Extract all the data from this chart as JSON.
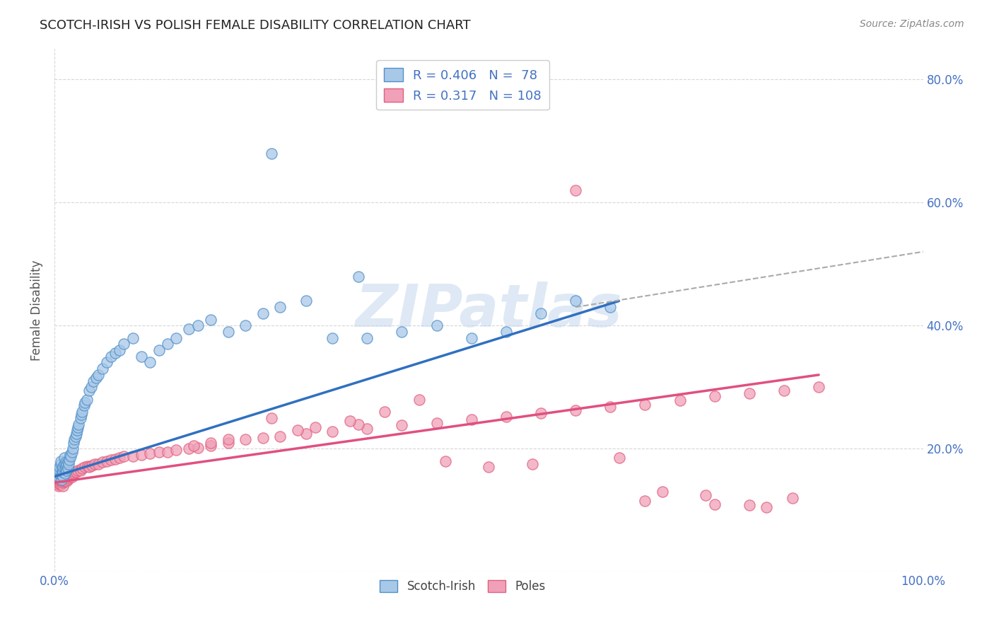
{
  "title": "SCOTCH-IRISH VS POLISH FEMALE DISABILITY CORRELATION CHART",
  "source": "Source: ZipAtlas.com",
  "ylabel": "Female Disability",
  "xlim": [
    0.0,
    1.0
  ],
  "ylim": [
    0.0,
    0.85
  ],
  "xticks": [
    0.0,
    1.0
  ],
  "xticklabels": [
    "0.0%",
    "100.0%"
  ],
  "right_yticks": [
    0.2,
    0.4,
    0.6,
    0.8
  ],
  "right_yticklabels": [
    "20.0%",
    "40.0%",
    "60.0%",
    "80.0%"
  ],
  "scotch_irish_R": 0.406,
  "scotch_irish_N": 78,
  "poles_R": 0.317,
  "poles_N": 108,
  "scotch_irish_color": "#A8C8E8",
  "poles_color": "#F0A0B8",
  "scotch_irish_edge_color": "#5090C8",
  "poles_edge_color": "#E06080",
  "scotch_irish_line_color": "#3070C0",
  "poles_line_color": "#E05080",
  "dashed_line_color": "#AAAAAA",
  "title_color": "#222222",
  "axis_label_color": "#4472C4",
  "tick_color": "#4472C4",
  "background_color": "#FFFFFF",
  "grid_color": "#CCCCCC",
  "watermark": "ZIPatlas",
  "scotch_irish_x": [
    0.005,
    0.005,
    0.006,
    0.006,
    0.007,
    0.007,
    0.008,
    0.008,
    0.009,
    0.009,
    0.01,
    0.01,
    0.01,
    0.011,
    0.011,
    0.012,
    0.012,
    0.013,
    0.013,
    0.014,
    0.014,
    0.015,
    0.015,
    0.016,
    0.017,
    0.018,
    0.019,
    0.02,
    0.021,
    0.022,
    0.023,
    0.024,
    0.025,
    0.026,
    0.027,
    0.028,
    0.03,
    0.031,
    0.032,
    0.034,
    0.035,
    0.037,
    0.04,
    0.042,
    0.045,
    0.048,
    0.05,
    0.055,
    0.06,
    0.065,
    0.07,
    0.075,
    0.08,
    0.09,
    0.1,
    0.11,
    0.12,
    0.13,
    0.14,
    0.155,
    0.165,
    0.18,
    0.2,
    0.22,
    0.24,
    0.26,
    0.29,
    0.32,
    0.36,
    0.4,
    0.44,
    0.48,
    0.52,
    0.56,
    0.6,
    0.64,
    0.35,
    0.25
  ],
  "scotch_irish_y": [
    0.155,
    0.16,
    0.165,
    0.17,
    0.175,
    0.18,
    0.15,
    0.158,
    0.162,
    0.168,
    0.155,
    0.162,
    0.17,
    0.175,
    0.185,
    0.16,
    0.168,
    0.172,
    0.178,
    0.165,
    0.175,
    0.168,
    0.178,
    0.175,
    0.182,
    0.19,
    0.188,
    0.195,
    0.2,
    0.21,
    0.215,
    0.22,
    0.225,
    0.23,
    0.235,
    0.24,
    0.25,
    0.255,
    0.26,
    0.27,
    0.275,
    0.28,
    0.295,
    0.3,
    0.31,
    0.315,
    0.32,
    0.33,
    0.34,
    0.35,
    0.355,
    0.36,
    0.37,
    0.38,
    0.35,
    0.34,
    0.36,
    0.37,
    0.38,
    0.395,
    0.4,
    0.41,
    0.39,
    0.4,
    0.42,
    0.43,
    0.44,
    0.38,
    0.38,
    0.39,
    0.4,
    0.38,
    0.39,
    0.42,
    0.44,
    0.43,
    0.48,
    0.68
  ],
  "poles_x": [
    0.002,
    0.003,
    0.003,
    0.004,
    0.004,
    0.004,
    0.005,
    0.005,
    0.005,
    0.006,
    0.006,
    0.006,
    0.007,
    0.007,
    0.007,
    0.008,
    0.008,
    0.008,
    0.009,
    0.009,
    0.01,
    0.01,
    0.01,
    0.01,
    0.011,
    0.011,
    0.012,
    0.012,
    0.013,
    0.013,
    0.014,
    0.015,
    0.015,
    0.016,
    0.017,
    0.018,
    0.019,
    0.02,
    0.021,
    0.022,
    0.023,
    0.025,
    0.027,
    0.03,
    0.032,
    0.035,
    0.038,
    0.04,
    0.043,
    0.046,
    0.05,
    0.055,
    0.06,
    0.065,
    0.07,
    0.075,
    0.08,
    0.09,
    0.1,
    0.11,
    0.12,
    0.13,
    0.14,
    0.155,
    0.165,
    0.18,
    0.2,
    0.22,
    0.24,
    0.26,
    0.29,
    0.32,
    0.36,
    0.4,
    0.44,
    0.48,
    0.52,
    0.56,
    0.6,
    0.64,
    0.68,
    0.72,
    0.76,
    0.8,
    0.84,
    0.88,
    0.25,
    0.3,
    0.35,
    0.28,
    0.18,
    0.16,
    0.2,
    0.42,
    0.38,
    0.34,
    0.45,
    0.5,
    0.55,
    0.6,
    0.65,
    0.7,
    0.75,
    0.8,
    0.85,
    0.82,
    0.76,
    0.68
  ],
  "poles_y": [
    0.145,
    0.148,
    0.15,
    0.142,
    0.147,
    0.152,
    0.14,
    0.145,
    0.15,
    0.143,
    0.148,
    0.153,
    0.142,
    0.147,
    0.152,
    0.145,
    0.15,
    0.155,
    0.148,
    0.153,
    0.14,
    0.145,
    0.148,
    0.152,
    0.147,
    0.153,
    0.148,
    0.152,
    0.15,
    0.155,
    0.148,
    0.15,
    0.155,
    0.152,
    0.155,
    0.158,
    0.16,
    0.155,
    0.158,
    0.16,
    0.163,
    0.162,
    0.165,
    0.165,
    0.168,
    0.17,
    0.172,
    0.17,
    0.173,
    0.175,
    0.175,
    0.178,
    0.18,
    0.182,
    0.183,
    0.185,
    0.188,
    0.188,
    0.19,
    0.192,
    0.195,
    0.195,
    0.198,
    0.2,
    0.202,
    0.205,
    0.21,
    0.215,
    0.218,
    0.22,
    0.225,
    0.228,
    0.232,
    0.238,
    0.242,
    0.248,
    0.252,
    0.258,
    0.262,
    0.268,
    0.272,
    0.278,
    0.285,
    0.29,
    0.295,
    0.3,
    0.25,
    0.235,
    0.24,
    0.23,
    0.21,
    0.205,
    0.215,
    0.28,
    0.26,
    0.245,
    0.18,
    0.17,
    0.175,
    0.62,
    0.185,
    0.13,
    0.125,
    0.108,
    0.12,
    0.105,
    0.11,
    0.115
  ],
  "scotch_irish_line_x": [
    0.0,
    0.65
  ],
  "scotch_irish_line_y": [
    0.155,
    0.44
  ],
  "poles_line_x": [
    0.0,
    0.88
  ],
  "poles_line_y": [
    0.145,
    0.32
  ],
  "dashed_line_x": [
    0.6,
    1.0
  ],
  "dashed_line_y": [
    0.43,
    0.52
  ]
}
